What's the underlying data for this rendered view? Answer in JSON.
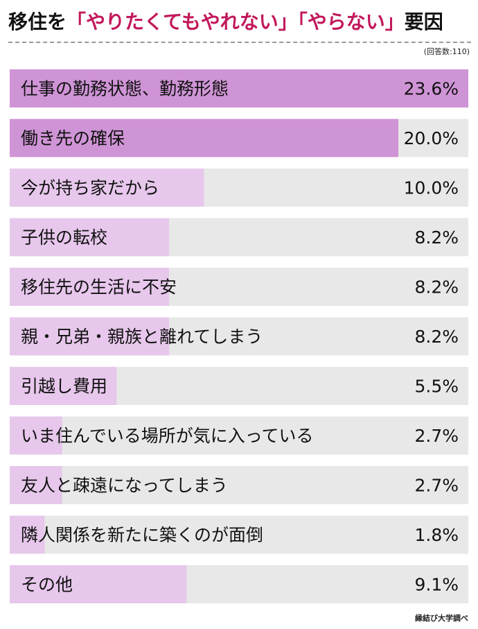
{
  "title": {
    "prefix": "移住を",
    "highlight1": "「やりたくてもやれない」",
    "highlight2": "「やらない」",
    "suffix": "要因"
  },
  "respondents_label": "(回答数:110)",
  "source_label": "縁結び大学調べ",
  "colors": {
    "track": "#e8e8e8",
    "bar_top": "#cf94d6",
    "bar_other": "#e7c7ec",
    "title_accent": "#c2185b",
    "text": "#111111"
  },
  "chart_data": {
    "type": "bar",
    "orientation": "horizontal",
    "categories": [
      "仕事の勤務状態、勤務形態",
      "働き先の確保",
      "今が持ち家だから",
      "子供の転校",
      "移住先の生活に不安",
      "親・兄弟・親族と離れてしまう",
      "引越し費用",
      "いま住んでいる場所が気に入っている",
      "友人と疎遠になってしまう",
      "隣人関係を新たに築くのが面倒",
      "その他"
    ],
    "values": [
      23.6,
      20.0,
      10.0,
      8.2,
      8.2,
      8.2,
      5.5,
      2.7,
      2.7,
      1.8,
      9.1
    ],
    "value_labels": [
      "23.6%",
      "20.0%",
      "10.0%",
      "8.2%",
      "8.2%",
      "8.2%",
      "5.5%",
      "2.7%",
      "2.7%",
      "1.8%",
      "9.1%"
    ],
    "unit": "%",
    "xlim": [
      0,
      23.6
    ],
    "highlighted_count": 2,
    "grid": false,
    "legend": "none"
  }
}
